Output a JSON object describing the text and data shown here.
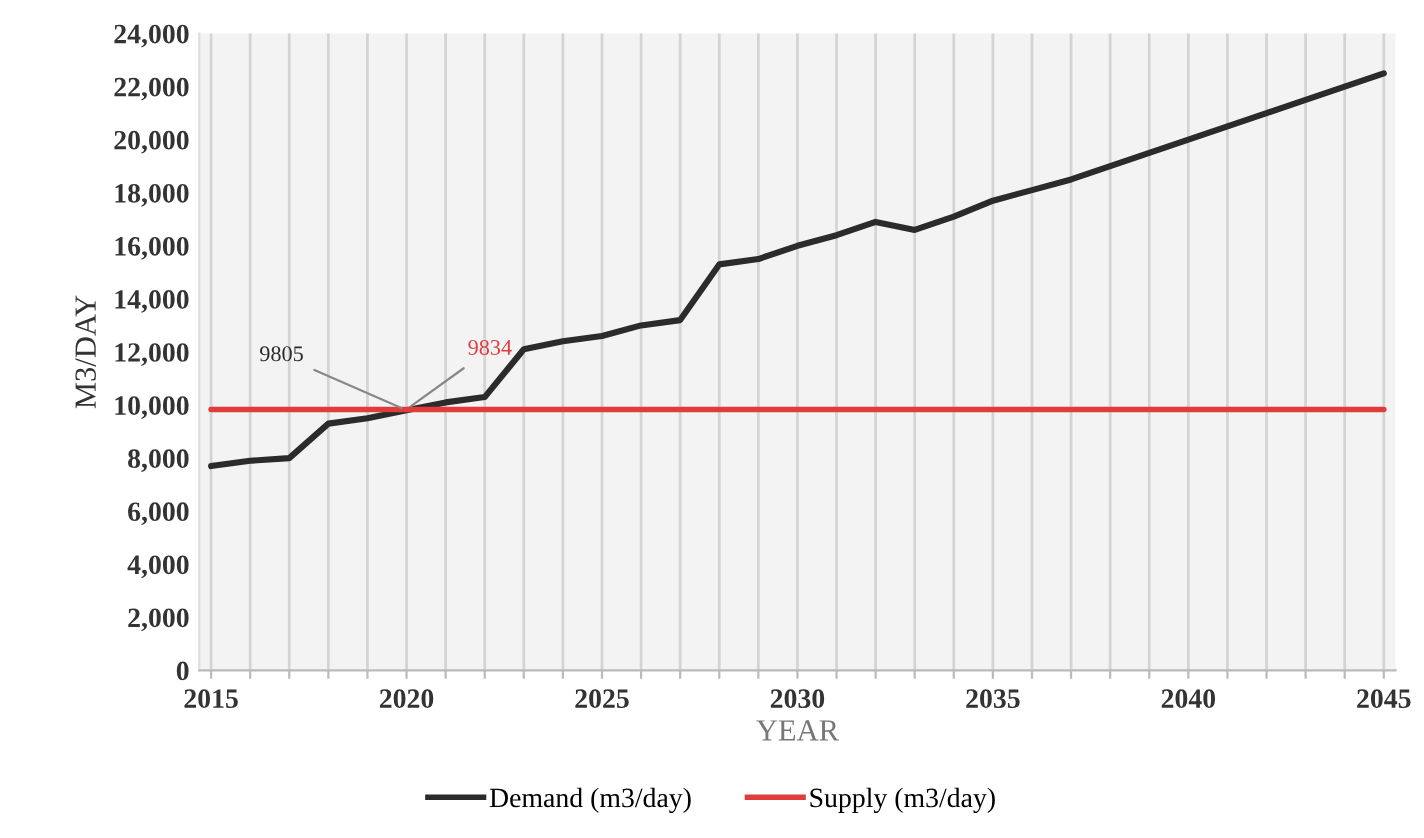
{
  "chart_data": {
    "type": "line",
    "xlabel": "YEAR",
    "ylabel": "M3/DAY",
    "x": [
      2015,
      2016,
      2017,
      2018,
      2019,
      2020,
      2021,
      2022,
      2023,
      2024,
      2025,
      2026,
      2027,
      2028,
      2029,
      2030,
      2031,
      2032,
      2033,
      2034,
      2035,
      2036,
      2037,
      2038,
      2039,
      2040,
      2041,
      2042,
      2043,
      2044,
      2045
    ],
    "series": [
      {
        "name": "Demand (m3/day)",
        "color": "#2b2b2b",
        "values": [
          7700,
          7900,
          8000,
          9300,
          9500,
          9805,
          10100,
          10300,
          12100,
          12400,
          12600,
          13000,
          13200,
          15300,
          15500,
          16000,
          16400,
          16900,
          16600,
          17100,
          17700,
          18100,
          18500,
          19000,
          19500,
          20000,
          20500,
          21000,
          21500,
          22000,
          22500
        ]
      },
      {
        "name": "Supply (m3/day)",
        "color": "#e03c3c",
        "values": [
          9834,
          9834,
          9834,
          9834,
          9834,
          9834,
          9834,
          9834,
          9834,
          9834,
          9834,
          9834,
          9834,
          9834,
          9834,
          9834,
          9834,
          9834,
          9834,
          9834,
          9834,
          9834,
          9834,
          9834,
          9834,
          9834,
          9834,
          9834,
          9834,
          9834,
          9834
        ]
      }
    ],
    "annotations": [
      {
        "text": "9805",
        "x": 2020,
        "y": 9805
      },
      {
        "text": "9834",
        "x": 2020,
        "y": 9834
      }
    ],
    "xlim": [
      2014.7,
      2045.3
    ],
    "xticks": [
      2015,
      {
        "value": 2016,
        "label": null
      },
      {
        "value": 2017,
        "label": null
      },
      {
        "value": 2018,
        "label": null
      },
      {
        "value": 2019,
        "label": null
      },
      2020,
      {
        "value": 2021,
        "label": null
      },
      {
        "value": 2022,
        "label": null
      },
      {
        "value": 2023,
        "label": null
      },
      {
        "value": 2024,
        "label": null
      },
      2025,
      {
        "value": 2026,
        "label": null
      },
      {
        "value": 2027,
        "label": null
      },
      {
        "value": 2028,
        "label": null
      },
      {
        "value": 2029,
        "label": null
      },
      2030,
      {
        "value": 2031,
        "label": null
      },
      {
        "value": 2032,
        "label": null
      },
      {
        "value": 2033,
        "label": null
      },
      {
        "value": 2034,
        "label": null
      },
      2035,
      {
        "value": 2036,
        "label": null
      },
      {
        "value": 2037,
        "label": null
      },
      {
        "value": 2038,
        "label": null
      },
      {
        "value": 2039,
        "label": null
      },
      2040,
      {
        "value": 2041,
        "label": null
      },
      {
        "value": 2042,
        "label": null
      },
      {
        "value": 2043,
        "label": null
      },
      {
        "value": 2044,
        "label": null
      },
      2045
    ],
    "ylim": [
      0,
      24000
    ],
    "yticks": [
      {
        "value": 0,
        "label": "0"
      },
      {
        "value": 2000,
        "label": "2,000"
      },
      {
        "value": 4000,
        "label": "4,000"
      },
      {
        "value": 6000,
        "label": "6,000"
      },
      {
        "value": 8000,
        "label": "8,000"
      },
      {
        "value": 10000,
        "label": "10,000"
      },
      {
        "value": 12000,
        "label": "12,000"
      },
      {
        "value": 14000,
        "label": "14,000"
      },
      {
        "value": 16000,
        "label": "16,000"
      },
      {
        "value": 18000,
        "label": "18,000"
      },
      {
        "value": 20000,
        "label": "20,000"
      },
      {
        "value": 22000,
        "label": "22,000"
      },
      {
        "value": 24000,
        "label": "24,000"
      }
    ],
    "grid": "x",
    "legend": "bottom",
    "marker": "none",
    "line_style": "solid"
  }
}
